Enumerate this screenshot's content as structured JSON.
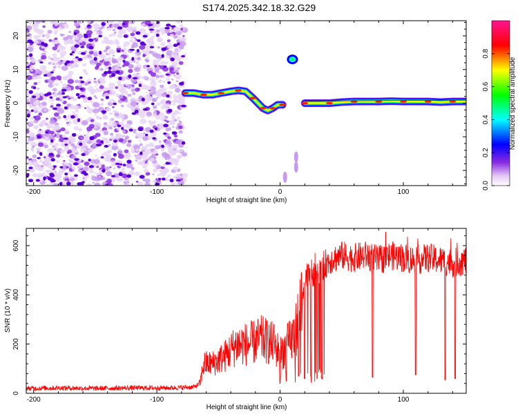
{
  "title": "S174.2025.342.18.32.G29",
  "colors": {
    "trace": "#ff0000",
    "axis": "#000000"
  },
  "chart_data": [
    {
      "type": "heatmap",
      "xlabel": "Height of straight line (km)",
      "ylabel": "Frequency (Hz)",
      "xlim": [
        -206,
        151
      ],
      "ylim": [
        -24.5,
        24.5
      ],
      "xticks": [
        -200,
        -100,
        0,
        100
      ],
      "xtick_labels": [
        "-200",
        "-100",
        "0",
        "100"
      ],
      "yticks": [
        -20,
        -10,
        0,
        10,
        20
      ],
      "ytick_labels": [
        "-20",
        "-10",
        "0",
        "10",
        "20"
      ],
      "noise_region_x": [
        -206,
        -77
      ],
      "ridge": {
        "x": [
          -77,
          -70,
          -62,
          -55,
          -48,
          -40,
          -34,
          -28,
          -22,
          -18,
          -14,
          -10,
          -6,
          -2,
          2,
          8,
          12,
          15,
          20,
          30,
          40,
          50,
          60,
          70,
          80,
          90,
          100,
          110,
          120,
          130,
          140,
          151
        ],
        "y": [
          3.0,
          3.0,
          2.5,
          2.5,
          3.0,
          3.5,
          3.8,
          3.5,
          1.5,
          0.0,
          -1.5,
          -2.2,
          -1.5,
          -0.5,
          -0.5,
          null,
          null,
          null,
          0.0,
          0.0,
          0.0,
          0.3,
          0.5,
          0.5,
          0.5,
          0.6,
          0.5,
          0.5,
          0.5,
          0.3,
          0.5,
          0.5
        ]
      },
      "isolated_patches": [
        {
          "x": 10,
          "y": 13
        },
        {
          "x": 13,
          "y": -16
        },
        {
          "x": 13,
          "y": -19
        },
        {
          "x": 4,
          "y": -22
        }
      ],
      "colorbar": {
        "label": "Normalized spectral amplitude",
        "range": [
          0.0,
          1.0
        ],
        "ticks": [
          0.0,
          0.2,
          0.4,
          0.6,
          0.8
        ],
        "tick_labels": [
          "0.0",
          "0.2",
          "0.4",
          "0.6",
          "0.8"
        ],
        "stops": [
          "#ffffff",
          "#e3c6f5",
          "#8a2be2",
          "#0000ff",
          "#00ffff",
          "#00ff00",
          "#ffff00",
          "#ff0000",
          "#ff1493"
        ]
      }
    },
    {
      "type": "line",
      "xlabel": "Height of straight line (km)",
      "ylabel": "SNR (10 * v/v)",
      "xlim": [
        -206,
        151
      ],
      "ylim": [
        0,
        670
      ],
      "xticks": [
        -200,
        -100,
        0,
        100
      ],
      "xtick_labels": [
        "-200",
        "-100",
        "0",
        "100"
      ],
      "yticks": [
        0,
        200,
        400,
        600
      ],
      "ytick_labels": [
        "0",
        "200",
        "400",
        "600"
      ],
      "series": [
        {
          "name": "SNR",
          "x": [
            -206,
            -180,
            -150,
            -120,
            -90,
            -70,
            -65,
            -62,
            -55,
            -45,
            -35,
            -25,
            -15,
            -5,
            0,
            5,
            12,
            18,
            22,
            30,
            40,
            50,
            60,
            70,
            80,
            90,
            100,
            110,
            120,
            130,
            140,
            151
          ],
          "y": [
            20,
            22,
            20,
            22,
            22,
            25,
            40,
            120,
            120,
            150,
            200,
            200,
            220,
            200,
            160,
            190,
            240,
            400,
            470,
            500,
            540,
            560,
            550,
            560,
            540,
            560,
            550,
            540,
            550,
            540,
            530,
            540
          ]
        }
      ],
      "dropouts": [
        {
          "x": 0,
          "y": 40
        },
        {
          "x": 5,
          "y": 50
        },
        {
          "x": 15,
          "y": 70
        },
        {
          "x": 20,
          "y": 60
        },
        {
          "x": 25,
          "y": 70
        },
        {
          "x": 30,
          "y": 60
        },
        {
          "x": 34,
          "y": 65
        },
        {
          "x": 75,
          "y": 65
        },
        {
          "x": 110,
          "y": 75
        },
        {
          "x": 134,
          "y": 55
        },
        {
          "x": 142,
          "y": 60
        }
      ]
    }
  ]
}
